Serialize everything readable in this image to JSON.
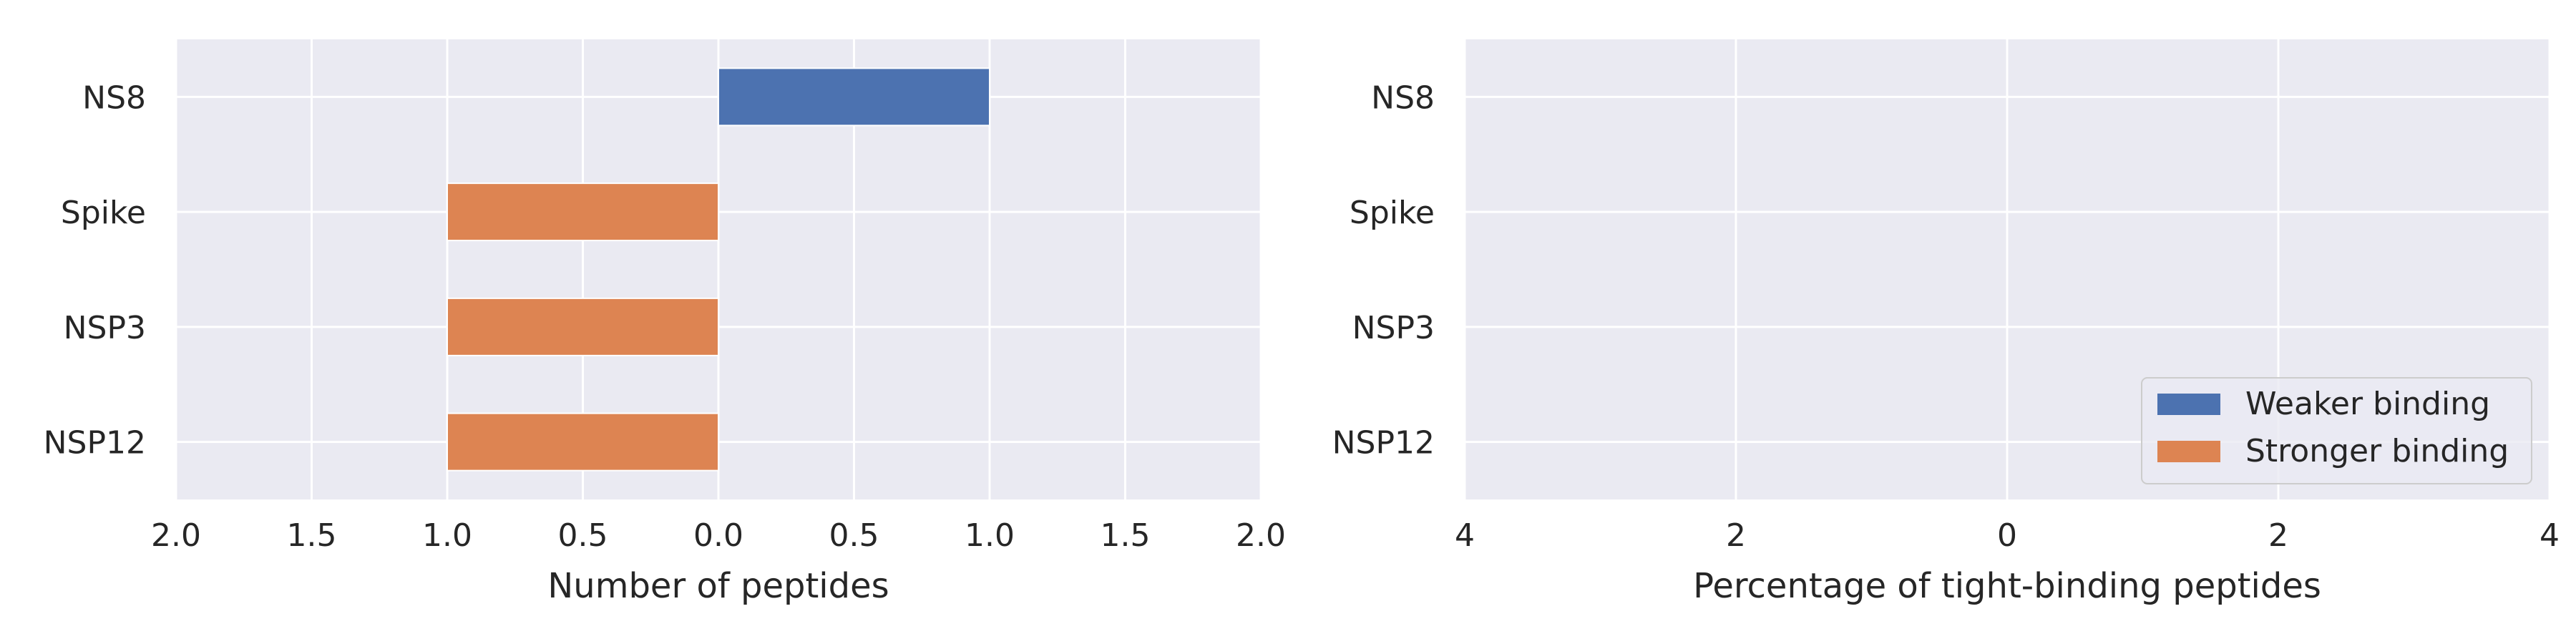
{
  "chart_data": [
    {
      "type": "bar",
      "orientation": "horizontal",
      "categories": [
        "NS8",
        "Spike",
        "NSP3",
        "NSP12"
      ],
      "series": [
        {
          "name": "Weaker binding",
          "values": [
            1,
            0,
            0,
            0
          ]
        },
        {
          "name": "Stronger binding",
          "values": [
            0,
            -1,
            -1,
            -1
          ]
        }
      ],
      "x_tick_labels": [
        "2.0",
        "1.5",
        "1.0",
        "0.5",
        "0.0",
        "0.5",
        "1.0",
        "1.5",
        "2.0"
      ],
      "xlabel": "Number of peptides",
      "ylabel": "",
      "xlim": [
        -2,
        2
      ],
      "grid": true,
      "legend": false
    },
    {
      "type": "bar",
      "orientation": "horizontal",
      "categories": [
        "NS8",
        "Spike",
        "NSP3",
        "NSP12"
      ],
      "series": [
        {
          "name": "Weaker binding",
          "values": [
            0,
            0,
            0,
            0
          ]
        },
        {
          "name": "Stronger binding",
          "values": [
            0,
            0,
            0,
            0
          ]
        }
      ],
      "x_tick_labels": [
        "4",
        "2",
        "0",
        "2",
        "4"
      ],
      "xlabel": "Percentage of tight-binding peptides",
      "ylabel": "",
      "xlim": [
        -5,
        5
      ],
      "grid": true,
      "legend": true,
      "legend_position": "lower-right"
    }
  ],
  "colors": {
    "weaker": "#4c72b0",
    "stronger": "#dd8452",
    "plot_background": "#eaeaf2",
    "grid": "#ffffff"
  }
}
